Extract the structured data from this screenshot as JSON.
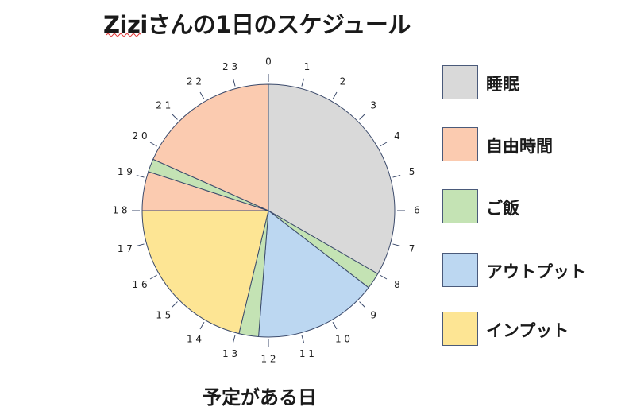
{
  "title": "Ziziさんの1日のスケジュール",
  "subtitle": "予定がある日",
  "chart_data": {
    "type": "pie",
    "unit": "hours",
    "start_hour": 0,
    "direction": "clockwise",
    "hour_labels": [
      "0",
      "1",
      "2",
      "3",
      "4",
      "5",
      "6",
      "7",
      "8",
      "9",
      "1 0",
      "1 1",
      "1 2",
      "1 3",
      "1 4",
      "1 5",
      "1 6",
      "1 7",
      "1 8",
      "1 9",
      "2 0",
      "2 1",
      "2 2",
      "2 3"
    ],
    "slices": [
      {
        "category": "睡眠",
        "start": 0,
        "end": 8
      },
      {
        "category": "ご飯",
        "start": 8,
        "end": 8.5
      },
      {
        "category": "アウトプット",
        "start": 8.5,
        "end": 12.3
      },
      {
        "category": "ご飯",
        "start": 12.3,
        "end": 12.9
      },
      {
        "category": "インプット",
        "start": 12.9,
        "end": 18
      },
      {
        "category": "自由時間",
        "start": 18,
        "end": 19.2
      },
      {
        "category": "ご飯",
        "start": 19.2,
        "end": 19.6
      },
      {
        "category": "自由時間",
        "start": 19.6,
        "end": 24
      }
    ],
    "legend": [
      {
        "label": "睡眠",
        "color": "#d9d9d9"
      },
      {
        "label": "自由時間",
        "color": "#fbcbb0"
      },
      {
        "label": "ご飯",
        "color": "#c4e3b4"
      },
      {
        "label": "アウトプット",
        "color": "#bcd7f1"
      },
      {
        "label": "インプット",
        "color": "#fde594"
      }
    ],
    "legend_position": "right"
  }
}
